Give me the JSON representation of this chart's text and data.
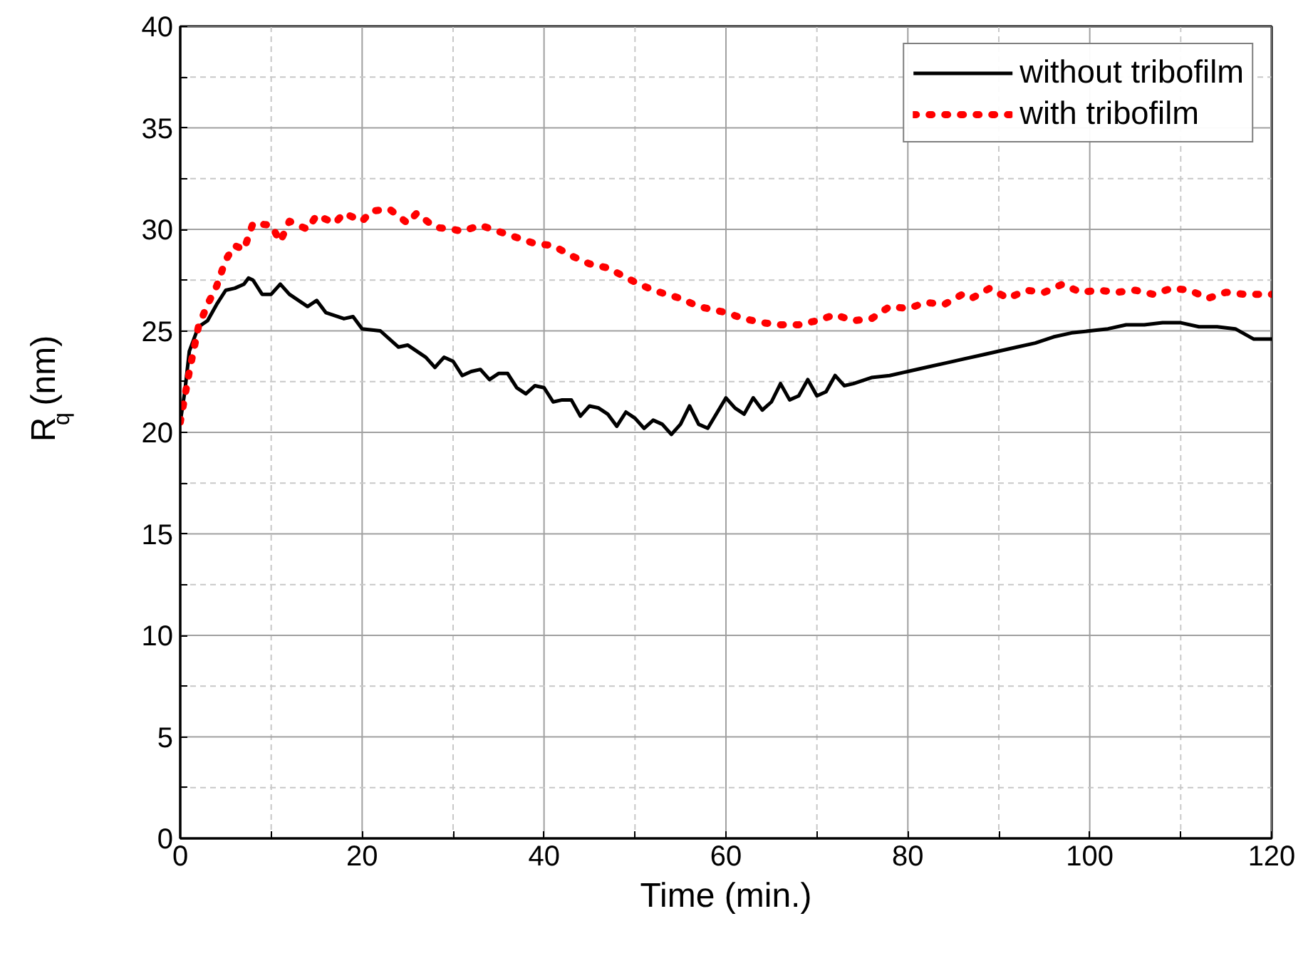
{
  "chart_data": {
    "type": "line",
    "xlabel": "Time (min.)",
    "ylabel": "R$_{q}$ (nm)",
    "xlim": [
      0,
      120
    ],
    "ylim": [
      0,
      40
    ],
    "xticks": [
      0,
      {
        "value": 10,
        "label": null
      },
      20,
      {
        "value": 30,
        "label": null
      },
      40,
      {
        "value": 50,
        "label": null
      },
      60,
      {
        "value": 70,
        "label": null
      },
      80,
      {
        "value": 90,
        "label": null
      },
      100,
      {
        "value": 110,
        "label": null
      },
      120
    ],
    "yticks": [
      0,
      {
        "value": 2.5,
        "label": null
      },
      5,
      {
        "value": 7.5,
        "label": null
      },
      10,
      {
        "value": 12.5,
        "label": null
      },
      15,
      {
        "value": 17.5,
        "label": null
      },
      20,
      {
        "value": 22.5,
        "label": null
      },
      25,
      {
        "value": 27.5,
        "label": null
      },
      30,
      {
        "value": 32.5,
        "label": null
      },
      35,
      {
        "value": 37.5,
        "label": null
      },
      40
    ],
    "grid": true,
    "legend": "top right",
    "series": [
      {
        "name": "without tribofilm",
        "color": "#000000",
        "line_style": "solid",
        "x": [
          0,
          0.5,
          1,
          2,
          3,
          4,
          5,
          6,
          7,
          7.5,
          8,
          9,
          10,
          11,
          12,
          14,
          15,
          16,
          18,
          19,
          20,
          22,
          24,
          25,
          27,
          28,
          29,
          30,
          31,
          32,
          33,
          34,
          35,
          36,
          37,
          38,
          39,
          40,
          41,
          42,
          43,
          44,
          45,
          46,
          47,
          48,
          49,
          50,
          51,
          52,
          53,
          54,
          55,
          56,
          57,
          58,
          60,
          61,
          62,
          63,
          64,
          65,
          66,
          67,
          68,
          69,
          70,
          71,
          72,
          73,
          74,
          76,
          78,
          80,
          82,
          84,
          86,
          88,
          90,
          92,
          94,
          96,
          98,
          100,
          102,
          104,
          106,
          108,
          110,
          112,
          114,
          116,
          118,
          120
        ],
        "values": [
          20.5,
          22,
          24,
          25.2,
          25.5,
          26.3,
          27,
          27.1,
          27.3,
          27.6,
          27.5,
          26.8,
          26.8,
          27.3,
          26.8,
          26.2,
          26.5,
          25.9,
          25.6,
          25.7,
          25.1,
          25,
          24.2,
          24.3,
          23.7,
          23.2,
          23.7,
          23.5,
          22.8,
          23,
          23.1,
          22.6,
          22.9,
          22.9,
          22.2,
          21.9,
          22.3,
          22.2,
          21.5,
          21.6,
          21.6,
          20.8,
          21.3,
          21.2,
          20.9,
          20.3,
          21,
          20.7,
          20.2,
          20.6,
          20.4,
          19.9,
          20.4,
          21.3,
          20.4,
          20.2,
          21.7,
          21.2,
          20.9,
          21.7,
          21.1,
          21.5,
          22.4,
          21.6,
          21.8,
          22.6,
          21.8,
          22,
          22.8,
          22.3,
          22.4,
          22.7,
          22.8,
          23,
          23.2,
          23.4,
          23.6,
          23.8,
          24,
          24.2,
          24.4,
          24.7,
          24.9,
          25,
          25.1,
          25.3,
          25.3,
          25.4,
          25.4,
          25.2,
          25.2,
          25.1,
          24.6,
          24.6
        ]
      },
      {
        "name": "with tribofilm",
        "color": "#ff0000",
        "line_style": "dotted",
        "x": [
          0,
          1,
          2,
          3,
          4,
          5,
          6,
          7,
          8,
          10,
          11,
          12,
          14,
          15,
          17,
          18,
          20,
          21,
          23,
          25,
          26,
          28,
          30,
          31,
          33,
          35,
          37,
          39,
          41,
          43,
          45,
          47,
          50,
          52,
          55,
          57,
          60,
          62,
          64,
          66,
          68,
          70,
          72,
          74,
          76,
          78,
          80,
          82,
          84,
          86,
          87,
          89,
          91,
          93,
          95,
          97,
          99,
          101,
          103,
          105,
          107,
          109,
          111,
          113,
          115,
          117,
          120
        ],
        "values": [
          20.5,
          23,
          25.2,
          26.3,
          27.2,
          28.5,
          29.2,
          29,
          30.3,
          30.2,
          29.4,
          30.4,
          30,
          30.7,
          30.3,
          30.8,
          30.4,
          30.9,
          31,
          30.3,
          30.8,
          30.1,
          30,
          29.9,
          30.2,
          29.9,
          29.6,
          29.3,
          29.2,
          28.7,
          28.3,
          28.1,
          27.4,
          27,
          26.6,
          26.2,
          25.9,
          25.6,
          25.4,
          25.3,
          25.3,
          25.5,
          25.8,
          25.5,
          25.6,
          26.2,
          26.1,
          26.4,
          26.3,
          26.8,
          26.6,
          27.1,
          26.6,
          27,
          26.9,
          27.3,
          26.9,
          27,
          26.9,
          27,
          26.8,
          27.1,
          27,
          26.6,
          26.9,
          26.8,
          26.8
        ]
      }
    ]
  }
}
